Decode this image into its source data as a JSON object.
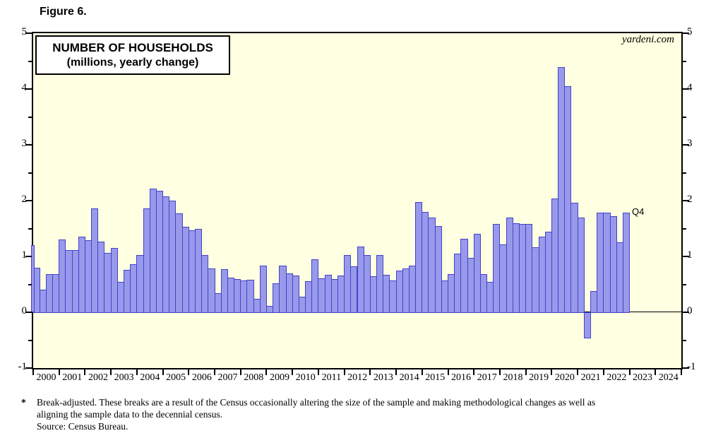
{
  "figure_label": "Figure 6.",
  "watermark": "yardeni.com",
  "chart_data": {
    "type": "bar",
    "title": "NUMBER OF HOUSEHOLDS",
    "subtitle": "(millions, yearly change)",
    "last_point_label": "Q4",
    "ylim": [
      -1,
      5
    ],
    "yticks": [
      5,
      4,
      3,
      2,
      1,
      0,
      -1
    ],
    "minor_tick_step": 0.5,
    "x_years": [
      2000,
      2001,
      2002,
      2003,
      2004,
      2005,
      2006,
      2007,
      2008,
      2009,
      2010,
      2011,
      2012,
      2013,
      2014,
      2015,
      2016,
      2017,
      2018,
      2019,
      2020,
      2021,
      2022,
      2023,
      2024
    ],
    "series_note": "quarterly values starting 2000Q1, millions yearly change",
    "partial_first_bar": 1.2,
    "values": [
      0.8,
      0.4,
      0.68,
      0.68,
      1.3,
      1.12,
      1.12,
      1.35,
      1.29,
      1.86,
      1.27,
      1.06,
      1.15,
      0.55,
      0.76,
      0.86,
      1.02,
      1.86,
      2.21,
      2.18,
      2.08,
      2.0,
      1.77,
      1.53,
      1.47,
      1.49,
      1.02,
      0.79,
      0.34,
      0.77,
      0.62,
      0.6,
      0.57,
      0.58,
      0.24,
      0.83,
      0.11,
      0.52,
      0.84,
      0.7,
      0.66,
      0.28,
      0.56,
      0.95,
      0.61,
      0.67,
      0.6,
      0.66,
      1.02,
      0.82,
      1.18,
      1.02,
      0.64,
      1.02,
      0.67,
      0.57,
      0.75,
      0.78,
      0.84,
      1.97,
      1.8,
      1.7,
      1.54,
      0.57,
      0.68,
      1.05,
      1.32,
      0.97,
      1.4,
      0.68,
      0.55,
      1.58,
      1.22,
      1.69,
      1.59,
      1.58,
      1.58,
      1.16,
      1.35,
      1.44,
      2.04,
      4.39,
      4.05,
      1.96,
      1.69,
      -0.47,
      0.38,
      1.79,
      1.78,
      1.72,
      1.25,
      1.79
    ],
    "colors": {
      "plot_background": "#FFFFE1",
      "bar_fill": "#9999EC",
      "bar_border": "#4343C8",
      "axis": "#000000"
    },
    "legend": null,
    "grid": false
  },
  "footnote": {
    "star": "*",
    "line1": "Break-adjusted. These breaks are a result of the Census occasionally altering the size of the sample and making methodological changes as well as",
    "line2": "aligning the sample data to the decennial census.",
    "source": "Source: Census Bureau."
  }
}
